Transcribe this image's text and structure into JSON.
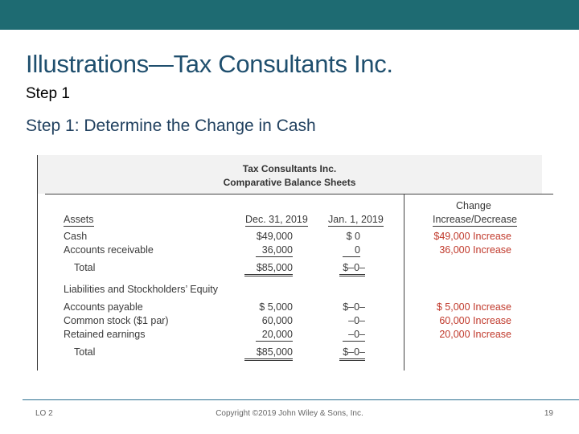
{
  "slide": {
    "title": "Illustrations—Tax Consultants Inc.",
    "subtitle": "Step 1",
    "heading": "Step 1: Determine the Change in Cash"
  },
  "sheet": {
    "company": "Tax Consultants Inc.",
    "name": "Comparative Balance Sheets",
    "col_dec": "Dec. 31, 2019",
    "col_jan": "Jan. 1, 2019",
    "col_change_1": "Change",
    "col_change_2": "Increase/Decrease",
    "assets_heading": "Assets",
    "liab_heading": "Liabilities and Stockholders’ Equity",
    "rows": {
      "cash": {
        "label": "Cash",
        "dec": "$49,000",
        "jan": "$  0",
        "change": "$49,000 Increase"
      },
      "ar": {
        "label": "Accounts receivable",
        "dec": "36,000",
        "jan": "0",
        "change": "36,000 Increase"
      },
      "total_assets": {
        "label": "Total",
        "dec": "$85,000",
        "jan": "$–0–"
      },
      "ap": {
        "label": "Accounts payable",
        "dec": "$  5,000",
        "jan": "$–0–",
        "change": "$  5,000 Increase"
      },
      "cs": {
        "label": "Common stock ($1 par)",
        "dec": "60,000",
        "jan": "–0–",
        "change": "60,000 Increase"
      },
      "re": {
        "label": "Retained earnings",
        "dec": "20,000",
        "jan": "–0–",
        "change": "20,000 Increase"
      },
      "total_le": {
        "label": "Total",
        "dec": "$85,000",
        "jan": "$–0–"
      }
    }
  },
  "footer": {
    "lo": "LO 2",
    "copyright": "Copyright ©2019 John Wiley & Sons, Inc.",
    "page": "19"
  },
  "colors": {
    "topbar": "#1e6b72",
    "title": "#1f4f6e",
    "increase_text": "#c0392b"
  }
}
